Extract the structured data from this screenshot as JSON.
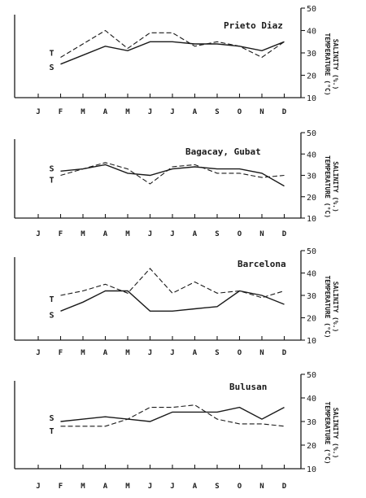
{
  "figure": {
    "months": [
      "J",
      "F",
      "M",
      "A",
      "M",
      "J",
      "J",
      "A",
      "S",
      "O",
      "N",
      "D"
    ],
    "ylabel_top": "TEMPERATURE (°C)",
    "ylabel_bottom": "SALINITY (%.)"
  },
  "chart_data": [
    {
      "type": "line",
      "title": "Prieto Diaz",
      "categories": [
        "J",
        "F",
        "M",
        "A",
        "M",
        "J",
        "J",
        "A",
        "S",
        "O",
        "N",
        "D"
      ],
      "ylim": [
        10,
        50
      ],
      "yticks": [
        10,
        20,
        30,
        40,
        50
      ],
      "series": [
        {
          "name": "S",
          "style": "solid",
          "values": [
            null,
            25,
            29,
            33,
            31,
            35,
            35,
            34,
            34,
            33,
            31,
            35
          ]
        },
        {
          "name": "T",
          "style": "dashed",
          "values": [
            null,
            28,
            34,
            40,
            32,
            39,
            39,
            33,
            35,
            33,
            28,
            35
          ]
        }
      ]
    },
    {
      "type": "line",
      "title": "Bagacay, Gubat",
      "categories": [
        "J",
        "F",
        "M",
        "A",
        "M",
        "J",
        "J",
        "A",
        "S",
        "O",
        "N",
        "D"
      ],
      "ylim": [
        10,
        50
      ],
      "yticks": [
        10,
        20,
        30,
        40,
        50
      ],
      "series": [
        {
          "name": "S",
          "style": "solid",
          "values": [
            null,
            32,
            33,
            35,
            31,
            30,
            33,
            34,
            33,
            33,
            31,
            25
          ]
        },
        {
          "name": "T",
          "style": "dashed",
          "values": [
            null,
            30,
            33,
            36,
            33,
            26,
            34,
            35,
            31,
            31,
            29,
            30
          ]
        }
      ]
    },
    {
      "type": "line",
      "title": "Barcelona",
      "categories": [
        "J",
        "F",
        "M",
        "A",
        "M",
        "J",
        "J",
        "A",
        "S",
        "O",
        "N",
        "D"
      ],
      "ylim": [
        10,
        50
      ],
      "yticks": [
        10,
        20,
        30,
        40,
        50
      ],
      "series": [
        {
          "name": "S",
          "style": "solid",
          "values": [
            null,
            23,
            27,
            32,
            32,
            23,
            23,
            24,
            25,
            32,
            30,
            26
          ]
        },
        {
          "name": "T",
          "style": "dashed",
          "values": [
            null,
            30,
            32,
            35,
            31,
            42,
            31,
            36,
            31,
            32,
            29,
            32
          ]
        }
      ]
    },
    {
      "type": "line",
      "title": "Bulusan",
      "categories": [
        "J",
        "F",
        "M",
        "A",
        "M",
        "J",
        "J",
        "A",
        "S",
        "O",
        "N",
        "D"
      ],
      "ylim": [
        10,
        50
      ],
      "yticks": [
        10,
        20,
        30,
        40,
        50
      ],
      "series": [
        {
          "name": "S",
          "style": "solid",
          "values": [
            null,
            30,
            31,
            32,
            31,
            30,
            34,
            34,
            34,
            36,
            31,
            36
          ]
        },
        {
          "name": "T",
          "style": "dashed",
          "values": [
            null,
            28,
            28,
            28,
            31,
            36,
            36,
            37,
            31,
            29,
            29,
            28
          ]
        }
      ]
    }
  ]
}
